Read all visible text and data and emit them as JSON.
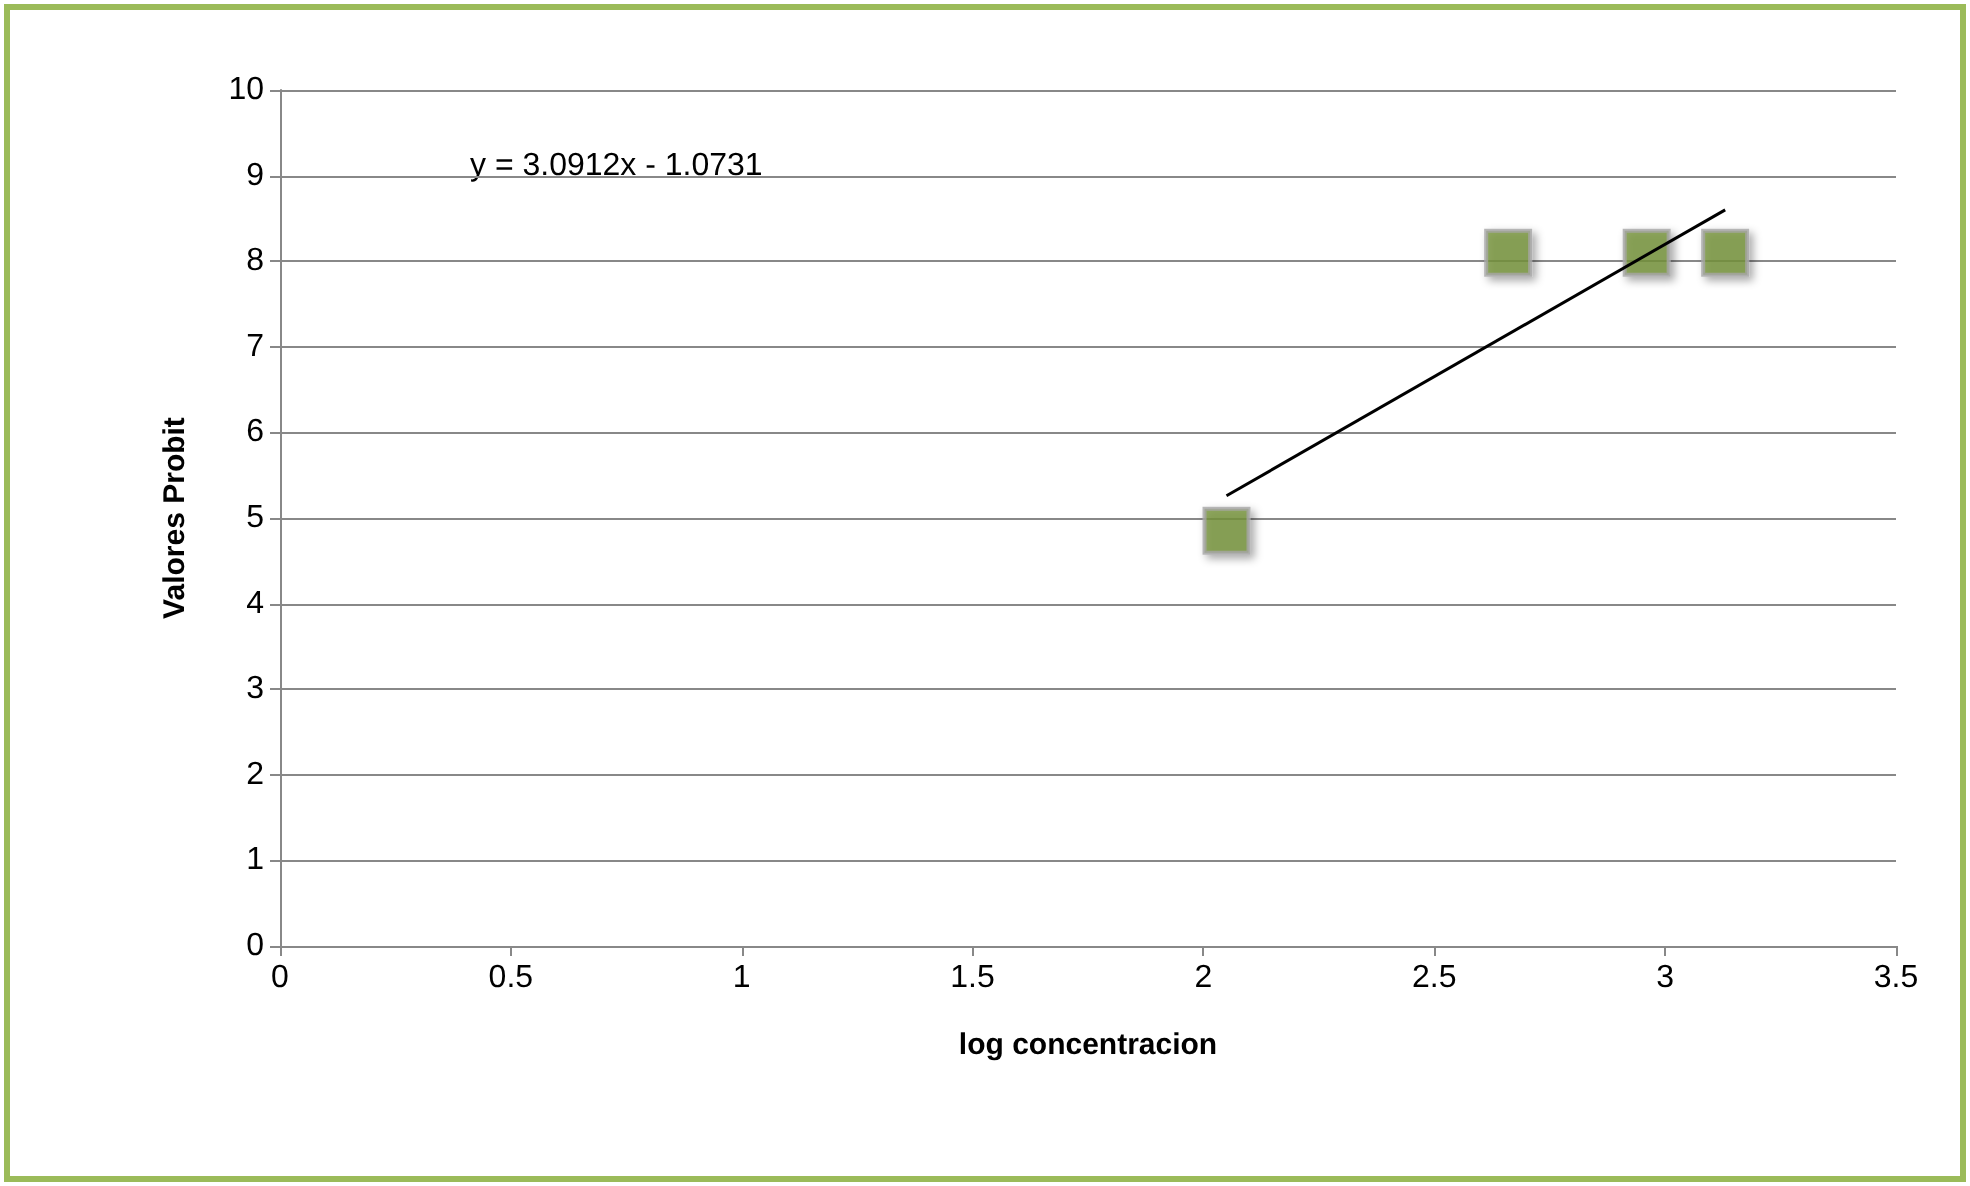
{
  "chart_data": {
    "type": "scatter",
    "xlabel": "log concentracion",
    "ylabel": "Valores Probit",
    "annotations": [
      "y = 3.0912x - 1.0731"
    ],
    "series": [
      {
        "color": "#77933c",
        "marker": "square",
        "x": [
          2.05,
          2.66,
          2.96,
          3.13
        ],
        "values": [
          4.85,
          8.1,
          8.1,
          8.1
        ]
      },
      {
        "type": "line",
        "color": "#000000",
        "marker": "none",
        "x": [
          2.05,
          3.13
        ],
        "values": [
          5.26,
          8.6
        ]
      }
    ],
    "xlim": [
      0,
      3.5
    ],
    "xticks": [
      0,
      0.5,
      1,
      1.5,
      2,
      2.5,
      3,
      3.5
    ],
    "ylim": [
      0,
      10
    ],
    "yticks": [
      0,
      1,
      2,
      3,
      4,
      5,
      6,
      7,
      8,
      9,
      10
    ],
    "grid": "y"
  }
}
